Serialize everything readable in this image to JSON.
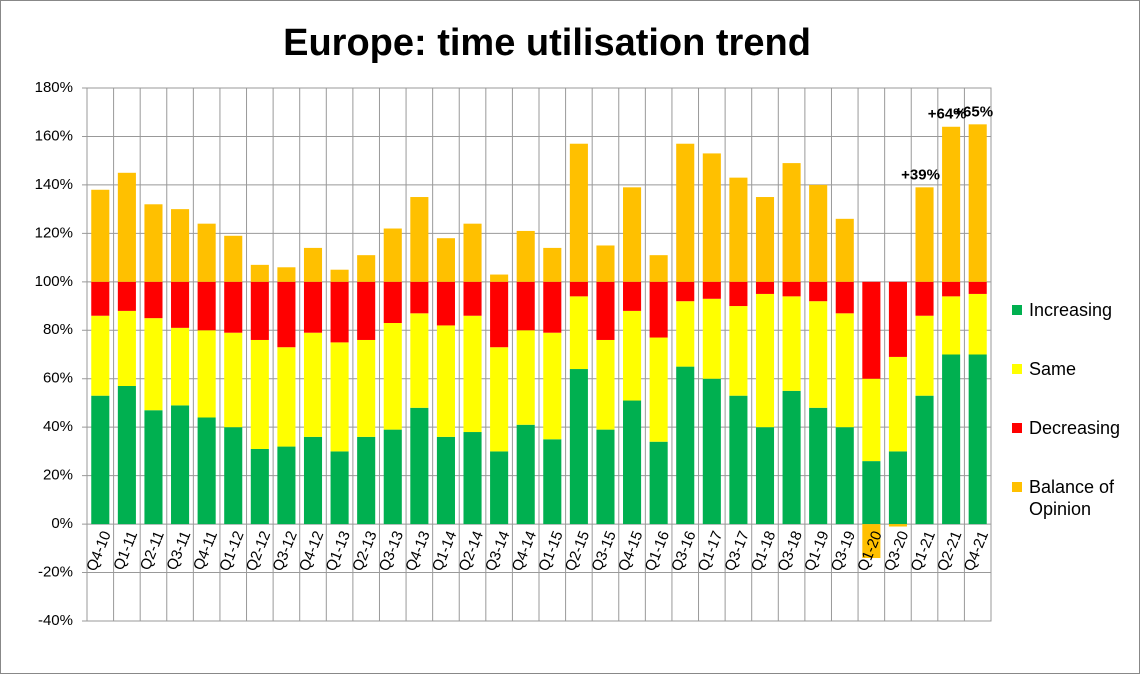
{
  "chart_data": {
    "type": "stacked_bar",
    "title": "Europe: time utilisation trend",
    "categories": [
      "Q4-10",
      "Q1-11",
      "Q2-11",
      "Q3-11",
      "Q4-11",
      "Q1-12",
      "Q2-12",
      "Q3-12",
      "Q4-12",
      "Q1-13",
      "Q2-13",
      "Q3-13",
      "Q4-13",
      "Q1-14",
      "Q2-14",
      "Q3-14",
      "Q4-14",
      "Q1-15",
      "Q2-15",
      "Q3-15",
      "Q4-15",
      "Q1-16",
      "Q3-16",
      "Q1-17",
      "Q3-17",
      "Q1-18",
      "Q3-18",
      "Q1-19",
      "Q3-19",
      "Q1-20",
      "Q3-20",
      "Q1-21",
      "Q2-21",
      "Q4-21"
    ],
    "series": [
      {
        "name": "Increasing",
        "color": "#00b050",
        "values": [
          53,
          57,
          47,
          49,
          44,
          40,
          31,
          32,
          36,
          30,
          36,
          39,
          48,
          36,
          38,
          30,
          41,
          35,
          64,
          39,
          51,
          34,
          65,
          60,
          53,
          40,
          55,
          48,
          40,
          26,
          30,
          53,
          70,
          70
        ]
      },
      {
        "name": "Same",
        "color": "#ffff00",
        "values": [
          33,
          31,
          38,
          32,
          36,
          39,
          45,
          41,
          43,
          45,
          40,
          44,
          39,
          46,
          48,
          43,
          39,
          44,
          30,
          37,
          37,
          43,
          27,
          33,
          37,
          55,
          39,
          44,
          47,
          34,
          39,
          33,
          24,
          25
        ]
      },
      {
        "name": "Decreasing",
        "color": "#ff0000",
        "values": [
          14,
          12,
          15,
          19,
          20,
          21,
          24,
          27,
          21,
          25,
          24,
          17,
          13,
          18,
          14,
          27,
          20,
          21,
          6,
          24,
          12,
          23,
          8,
          7,
          10,
          5,
          6,
          8,
          13,
          40,
          31,
          14,
          6,
          5
        ]
      },
      {
        "name": "Balance of Opinion",
        "color": "#ffc000",
        "values": [
          38,
          45,
          32,
          30,
          24,
          19,
          7,
          6,
          14,
          5,
          11,
          22,
          35,
          18,
          24,
          3,
          21,
          14,
          57,
          15,
          39,
          11,
          57,
          53,
          43,
          35,
          49,
          40,
          26,
          -14,
          -1,
          39,
          64,
          65
        ],
        "value_labels": [
          null,
          null,
          null,
          null,
          null,
          null,
          null,
          null,
          null,
          null,
          null,
          null,
          null,
          null,
          null,
          null,
          null,
          null,
          null,
          null,
          null,
          null,
          null,
          null,
          null,
          null,
          null,
          null,
          null,
          null,
          null,
          "+39%",
          "+64%",
          "+65%"
        ]
      }
    ],
    "ylim": [
      -40,
      180
    ],
    "yticks": [
      {
        "value": -40,
        "label": "-40%"
      },
      {
        "value": -20,
        "label": "-20%"
      },
      {
        "value": 0,
        "label": "0%"
      },
      {
        "value": 20,
        "label": "20%"
      },
      {
        "value": 40,
        "label": "40%"
      },
      {
        "value": 60,
        "label": "60%"
      },
      {
        "value": 80,
        "label": "80%"
      },
      {
        "value": 100,
        "label": "100%"
      },
      {
        "value": 120,
        "label": "120%"
      },
      {
        "value": 140,
        "label": "140%"
      },
      {
        "value": 160,
        "label": "160%"
      },
      {
        "value": 180,
        "label": "180%"
      }
    ],
    "grid": true,
    "legend": "right"
  }
}
